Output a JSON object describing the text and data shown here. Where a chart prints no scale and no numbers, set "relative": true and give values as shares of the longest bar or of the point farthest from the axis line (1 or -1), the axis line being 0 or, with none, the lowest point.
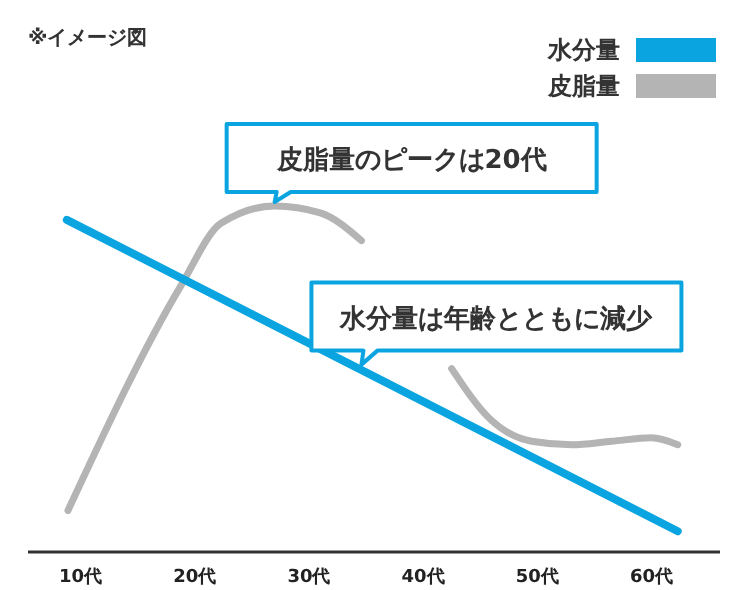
{
  "chart_data": {
    "type": "line",
    "relative": true,
    "xlim": [
      5.4,
      66
    ],
    "xticks": [
      {
        "value": 10,
        "label": "10代"
      },
      {
        "value": 20,
        "label": "20代"
      },
      {
        "value": 30,
        "label": "30代"
      },
      {
        "value": 40,
        "label": "40代"
      },
      {
        "value": 50,
        "label": "50代"
      },
      {
        "value": 60,
        "label": "60代"
      }
    ],
    "series": [
      {
        "name": "水分量",
        "color": "#0aa5e0",
        "x": [
          8.8,
          62.3
        ],
        "values": [
          0.96,
          0.06
        ]
      },
      {
        "name": "皮脂量",
        "color": "#b4b4b4",
        "x": [
          8.9,
          18.8,
          22.3,
          27,
          31,
          34.6,
          39,
          42.5,
          46,
          49.5,
          53,
          56.5,
          60,
          62.3
        ],
        "values": [
          0.12,
          0.77,
          0.95,
          1.0,
          0.98,
          0.9,
          null,
          0.53,
          0.38,
          0.32,
          0.31,
          0.32,
          0.33,
          0.31
        ]
      }
    ],
    "legend": "top right",
    "annotations": [
      "※イメージ図",
      {
        "text": "皮脂量のピークは20代",
        "x": 27,
        "y": 1.0
      },
      {
        "text": "水分量は年齢とともに減少",
        "x": 34.6,
        "y": 0.53
      }
    ]
  }
}
